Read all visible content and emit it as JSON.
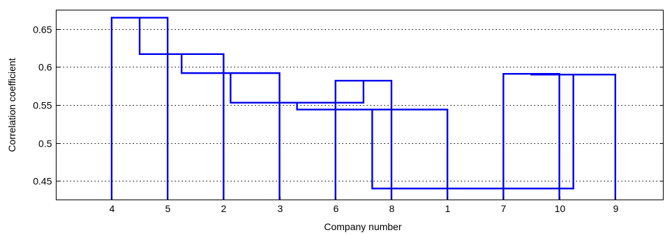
{
  "chart_data": {
    "type": "dendrogram",
    "xlabel": "Company number",
    "ylabel": "Correlation coefficient",
    "leaves": [
      "4",
      "5",
      "2",
      "3",
      "6",
      "8",
      "1",
      "7",
      "10",
      "9"
    ],
    "ylim": [
      0.425,
      0.675
    ],
    "yticks": [
      0.45,
      0.5,
      0.55,
      0.6,
      0.65
    ],
    "ytick_labels": [
      "0.45",
      "0.5",
      "0.55",
      "0.6",
      "0.65"
    ],
    "grid": "horizontal-dotted",
    "line_color": "#0000ee",
    "links": [
      {
        "left": 0,
        "right": 1,
        "height": 0.665,
        "left_base": 0.425,
        "right_base": 0.425
      },
      {
        "left": 0.5,
        "right": 2,
        "height": 0.617,
        "left_base": 0.665,
        "right_base": 0.425
      },
      {
        "left": 1.25,
        "right": 3,
        "height": 0.592,
        "left_base": 0.617,
        "right_base": 0.425
      },
      {
        "left": 4,
        "right": 5,
        "height": 0.582,
        "left_base": 0.425,
        "right_base": 0.425
      },
      {
        "left": 7,
        "right": 8,
        "height": 0.591,
        "left_base": 0.425,
        "right_base": 0.425
      },
      {
        "left": 7.5,
        "right": 9,
        "height": 0.59,
        "left_base": 0.591,
        "right_base": 0.425
      },
      {
        "left": 2.125,
        "right": 4.5,
        "height": 0.553,
        "left_base": 0.592,
        "right_base": 0.582
      },
      {
        "left": 3.3125,
        "right": 6,
        "height": 0.544,
        "left_base": 0.553,
        "right_base": 0.425
      },
      {
        "left": 4.65625,
        "right": 8.25,
        "height": 0.44,
        "left_base": 0.544,
        "right_base": 0.59
      }
    ]
  }
}
